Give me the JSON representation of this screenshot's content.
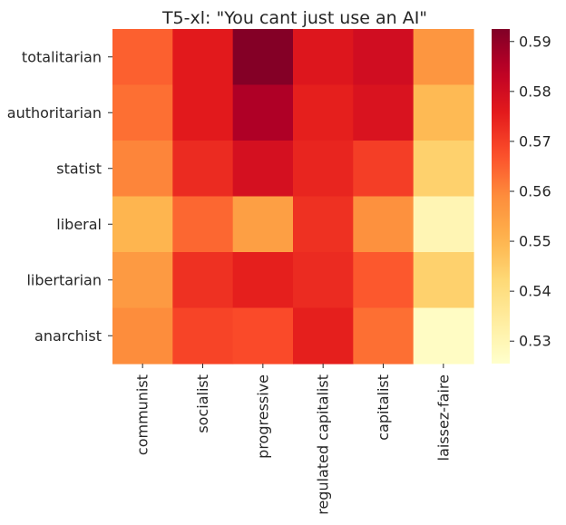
{
  "chart_data": {
    "type": "heatmap",
    "title": "T5-xl: \"You cant just use an AI\"",
    "xlabel": "",
    "ylabel": "",
    "rows": [
      "totalitarian",
      "authoritarian",
      "statist",
      "liberal",
      "libertarian",
      "anarchist"
    ],
    "columns": [
      "communist",
      "socialist",
      "progressive",
      "regulated capitalist",
      "capitalist",
      "laissez-faire"
    ],
    "values": [
      [
        0.565,
        0.576,
        0.592,
        0.577,
        0.58,
        0.557
      ],
      [
        0.563,
        0.576,
        0.586,
        0.575,
        0.578,
        0.549
      ],
      [
        0.56,
        0.573,
        0.579,
        0.574,
        0.57,
        0.544
      ],
      [
        0.55,
        0.564,
        0.555,
        0.572,
        0.558,
        0.53
      ],
      [
        0.556,
        0.572,
        0.575,
        0.573,
        0.566,
        0.544
      ],
      [
        0.559,
        0.569,
        0.568,
        0.575,
        0.563,
        0.527
      ]
    ],
    "colorbar": {
      "vmin": 0.5255,
      "vmax": 0.5925,
      "ticks": [
        0.53,
        0.54,
        0.55,
        0.56,
        0.57,
        0.58,
        0.59
      ],
      "tick_labels": [
        "0.53",
        "0.54",
        "0.55",
        "0.56",
        "0.57",
        "0.58",
        "0.59"
      ],
      "colormap": "YlOrRd"
    },
    "grid": false
  }
}
